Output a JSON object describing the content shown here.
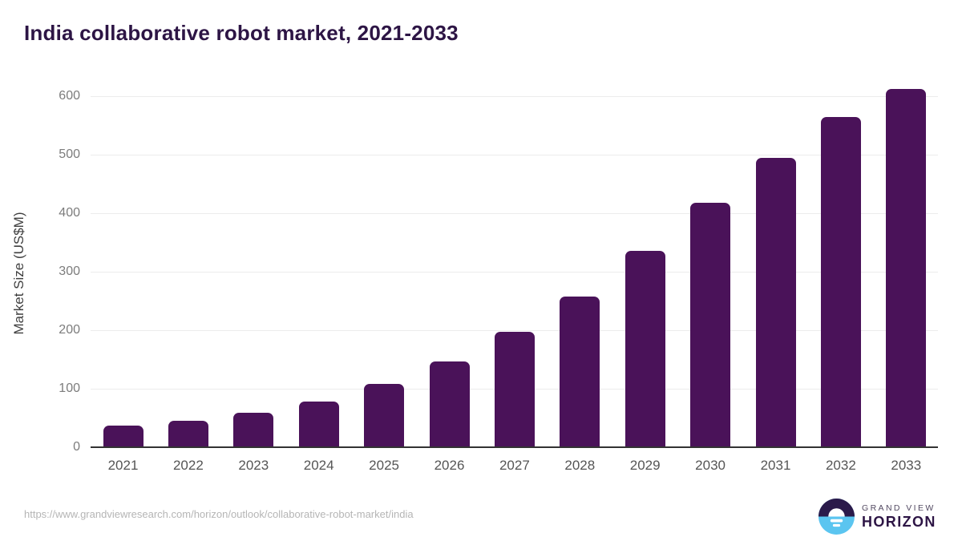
{
  "title": "India collaborative robot market, 2021-2033",
  "chart_data": {
    "type": "bar",
    "title": "India collaborative robot market, 2021-2033",
    "categories": [
      "2021",
      "2022",
      "2023",
      "2024",
      "2025",
      "2026",
      "2027",
      "2028",
      "2029",
      "2030",
      "2031",
      "2032",
      "2033"
    ],
    "values": [
      37,
      45,
      59,
      78,
      108,
      146,
      197,
      258,
      336,
      418,
      495,
      565,
      612
    ],
    "xlabel": "",
    "ylabel": "Market Size (US$M)",
    "yticks": [
      0,
      100,
      200,
      300,
      400,
      500,
      600
    ],
    "ylim": [
      0,
      625
    ],
    "grid": true,
    "legend": false,
    "bar_color": "#4a1259"
  },
  "footer": {
    "source_url": "https://www.grandviewresearch.com/horizon/outlook/collaborative-robot-market/india",
    "logo": {
      "line1": "GRAND VIEW",
      "line2": "HORIZON"
    }
  },
  "colors": {
    "title": "#2d1545",
    "bar": "#4a1259",
    "axis": "#333333",
    "grid": "#ececec",
    "y_tick_label": "#7c7c7c",
    "x_tick_label": "#555555",
    "url": "#b5b5b5",
    "logo_purple": "#2b1a4a",
    "logo_blue": "#5bc5f0"
  }
}
